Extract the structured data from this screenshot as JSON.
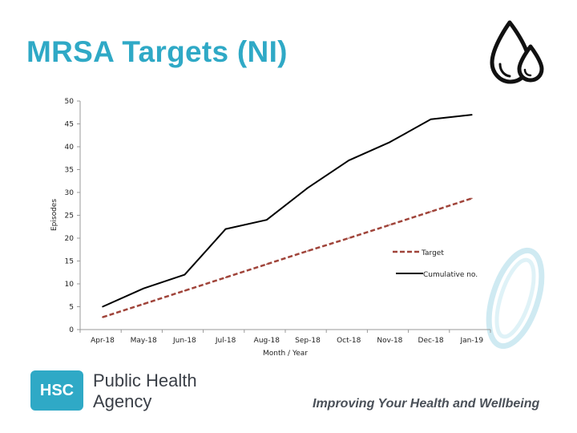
{
  "slide": {
    "title": "MRSA Targets (NI)",
    "logo_abbrev": "HSC",
    "logo_line1": "Public Health",
    "logo_line2": "Agency",
    "tagline": "Improving Your Health and Wellbeing"
  },
  "icons": {
    "top_right": "water-drops-icon",
    "watermark": "rings-icon"
  },
  "colors": {
    "title": "#2fa9c6",
    "target": "#a0443a",
    "cumulative": "#000000",
    "brand": "#2fa9c6"
  },
  "chart_data": {
    "type": "line",
    "title": "",
    "xlabel": "Month / Year",
    "ylabel": "Episodes",
    "ylim": [
      0,
      50
    ],
    "yticks": [
      0,
      5,
      10,
      15,
      20,
      25,
      30,
      35,
      40,
      45,
      50
    ],
    "categories": [
      "Apr-18",
      "May-18",
      "Jun-18",
      "Jul-18",
      "Aug-18",
      "Sep-18",
      "Oct-18",
      "Nov-18",
      "Dec-18",
      "Jan-19"
    ],
    "series": [
      {
        "name": "Target",
        "style": "dashed",
        "values": [
          2.7,
          5.6,
          8.5,
          11.4,
          14.3,
          17.2,
          20.0,
          22.9,
          25.8,
          28.7
        ]
      },
      {
        "name": "Cumulative no.",
        "style": "solid",
        "values": [
          5,
          9,
          12,
          22,
          24,
          31,
          37,
          41,
          46,
          47
        ]
      }
    ],
    "legend": {
      "position": "right",
      "entries": [
        "Target",
        "Cumulative no."
      ]
    }
  }
}
